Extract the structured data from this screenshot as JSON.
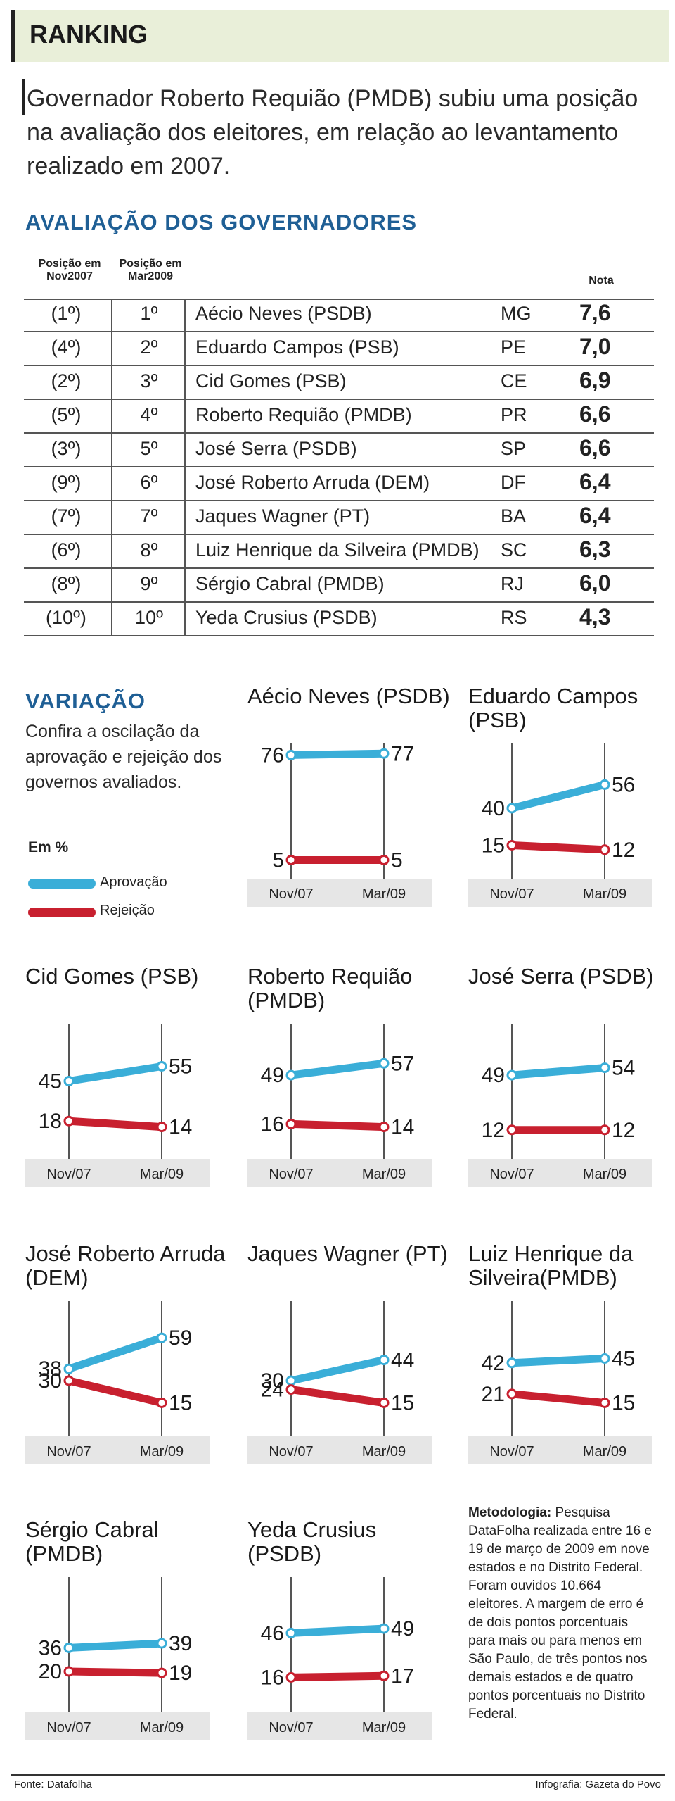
{
  "header": {
    "title": "RANKING"
  },
  "intro": {
    "text": "Governador Roberto Requião (PMDB) subiu uma posição na avaliação dos eleitores, em relação ao levantamento realizado em 2007."
  },
  "ranking": {
    "title": "AVALIAÇÃO DOS GOVERNADORES",
    "col_prev": "Posição em Nov2007",
    "col_cur": "Posição em Mar2009",
    "col_score": "Nota",
    "rows": [
      {
        "prev": "(1º)",
        "cur": "1º",
        "name": "Aécio Neves (PSDB)",
        "state": "MG",
        "score": "7,6"
      },
      {
        "prev": "(4º)",
        "cur": "2º",
        "name": "Eduardo Campos (PSB)",
        "state": "PE",
        "score": "7,0"
      },
      {
        "prev": "(2º)",
        "cur": "3º",
        "name": "Cid Gomes (PSB)",
        "state": "CE",
        "score": "6,9"
      },
      {
        "prev": "(5º)",
        "cur": "4º",
        "name": "Roberto Requião (PMDB)",
        "state": "PR",
        "score": "6,6"
      },
      {
        "prev": "(3º)",
        "cur": "5º",
        "name": "José Serra (PSDB)",
        "state": "SP",
        "score": "6,6"
      },
      {
        "prev": "(9º)",
        "cur": "6º",
        "name": "José Roberto Arruda (DEM)",
        "state": "DF",
        "score": "6,4"
      },
      {
        "prev": "(7º)",
        "cur": "7º",
        "name": "Jaques Wagner (PT)",
        "state": "BA",
        "score": "6,4"
      },
      {
        "prev": "(6º)",
        "cur": "8º",
        "name": "Luiz Henrique da Silveira (PMDB)",
        "state": "SC",
        "score": "6,3"
      },
      {
        "prev": "(8º)",
        "cur": "9º",
        "name": "Sérgio Cabral (PMDB)",
        "state": "RJ",
        "score": "6,0"
      },
      {
        "prev": "(10º)",
        "cur": "10º",
        "name": "Yeda Crusius (PSDB)",
        "state": "RS",
        "score": "4,3"
      }
    ]
  },
  "variation": {
    "title": "VARIAÇÃO",
    "text": "Confira a oscilação da aprovação e rejeição dos governos avaliados.",
    "unit": "Em %",
    "legend_approval": "Aprovação",
    "legend_rejection": "Rejeição"
  },
  "colors": {
    "approval": "#3aaed8",
    "rejection": "#c8202f",
    "axis_bg": "#e6e6e6",
    "title_blue": "#1f5f95"
  },
  "chart_data": {
    "type": "line",
    "x": [
      "Nov/07",
      "Mar/09"
    ],
    "panels": [
      {
        "title": "Aécio Neves (PSDB)",
        "approval": [
          76,
          77
        ],
        "rejection": [
          5,
          5
        ]
      },
      {
        "title": "Eduardo Campos (PSB)",
        "approval": [
          40,
          56
        ],
        "rejection": [
          15,
          12
        ]
      },
      {
        "title": "Cid Gomes (PSB)",
        "approval": [
          45,
          55
        ],
        "rejection": [
          18,
          14
        ]
      },
      {
        "title": "Roberto Requião (PMDB)",
        "approval": [
          49,
          57
        ],
        "rejection": [
          16,
          14
        ]
      },
      {
        "title": "José Serra (PSDB)",
        "approval": [
          49,
          54
        ],
        "rejection": [
          12,
          12
        ]
      },
      {
        "title": "José Roberto Arruda (DEM)",
        "approval": [
          38,
          59
        ],
        "rejection": [
          30,
          15
        ]
      },
      {
        "title": "Jaques Wagner (PT)",
        "approval": [
          30,
          44
        ],
        "rejection": [
          24,
          15
        ]
      },
      {
        "title": "Luiz Henrique da Silveira(PMDB)",
        "approval": [
          42,
          45
        ],
        "rejection": [
          21,
          15
        ]
      },
      {
        "title": "Sérgio Cabral (PMDB)",
        "approval": [
          36,
          39
        ],
        "rejection": [
          20,
          19
        ]
      },
      {
        "title": "Yeda Crusius (PSDB)",
        "approval": [
          46,
          49
        ],
        "rejection": [
          16,
          17
        ]
      }
    ]
  },
  "methodology": {
    "label": "Metodologia:",
    "text": "Pesquisa DataFolha realizada entre 16 e 19 de março de 2009 em nove estados e no Distrito Federal. Foram ouvidos 10.664 eleitores. A margem de erro é de dois pontos porcentuais para mais ou para menos em São Paulo, de três pontos nos demais estados e de quatro pontos porcentuais no Distrito Federal."
  },
  "footer": {
    "source": "Fonte: Datafolha",
    "credit": "Infografia: Gazeta do Povo"
  }
}
